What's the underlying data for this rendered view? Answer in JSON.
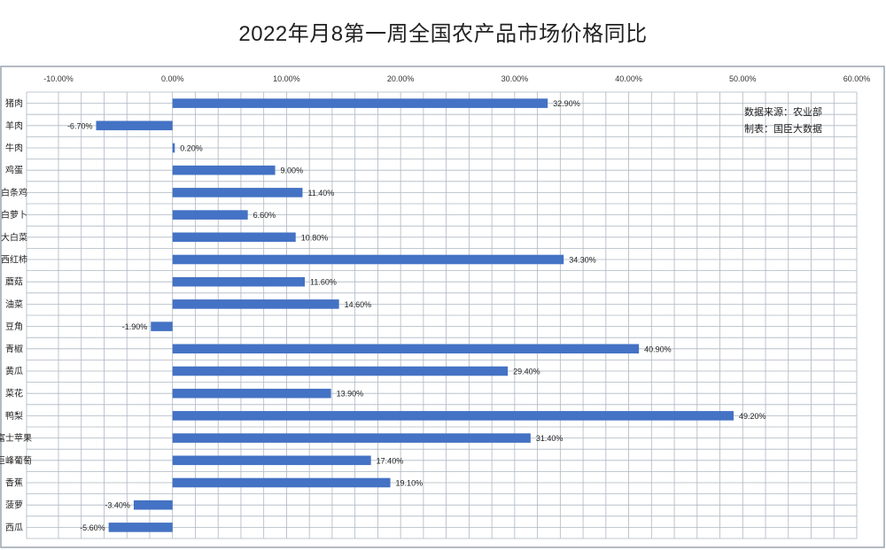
{
  "title": "2022年月8第一周全国农产品市场价格同比",
  "note": [
    "数据来源：农业部",
    "制表：国臣大数据"
  ],
  "chart_data": {
    "type": "bar",
    "orientation": "horizontal",
    "title": "2022年月8第一周全国农产品市场价格同比",
    "xlim": [
      -10,
      60
    ],
    "xticks": [
      -10,
      0,
      10,
      20,
      30,
      40,
      50,
      60
    ],
    "xtick_labels": [
      "-10.00%",
      "0.00%",
      "10.00%",
      "20.00%",
      "30.00%",
      "40.00%",
      "50.00%",
      "60.00%"
    ],
    "grid": true,
    "bar_color": "#4472c4",
    "categories": [
      "猪肉",
      "羊肉",
      "牛肉",
      "鸡蛋",
      "白条鸡",
      "白萝卜",
      "大白菜",
      "西红柿",
      "蘑菇",
      "油菜",
      "豆角",
      "青椒",
      "黄瓜",
      "菜花",
      "鸭梨",
      "富士苹果",
      "巨峰葡萄",
      "香蕉",
      "菠萝",
      "西瓜"
    ],
    "values": [
      32.9,
      -6.7,
      0.2,
      9.0,
      11.4,
      6.6,
      10.8,
      34.3,
      11.6,
      14.6,
      -1.9,
      40.9,
      29.4,
      13.9,
      49.2,
      31.4,
      17.4,
      19.1,
      -3.4,
      -5.6
    ],
    "value_labels": [
      "32.90%",
      "-6.70%",
      "0.20%",
      "9.00%",
      "11.40%",
      "6.60%",
      "10.80%",
      "34.30%",
      "11.60%",
      "14.60%",
      "-1.90%",
      "40.90%",
      "29.40%",
      "13.90%",
      "49.20%",
      "31.40%",
      "17.40%",
      "19.10%",
      "-3.40%",
      "-5.60%"
    ]
  }
}
